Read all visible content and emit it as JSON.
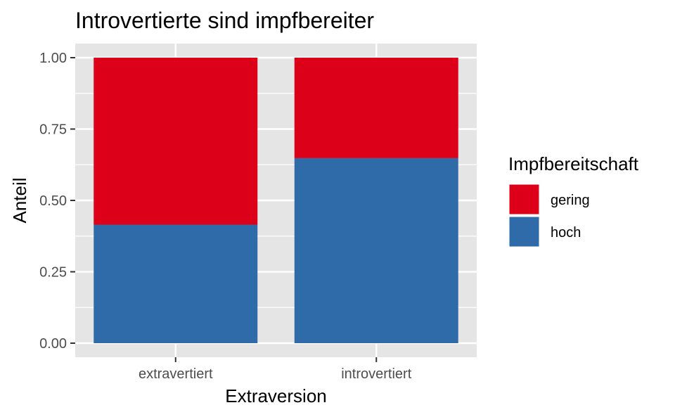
{
  "chart_data": {
    "type": "bar",
    "stacked": true,
    "title": "Introvertierte sind impfbereiter",
    "xlabel": "Extraversion",
    "ylabel": "Anteil",
    "categories": [
      "extravertiert",
      "introvertiert"
    ],
    "series": [
      {
        "name": "gering",
        "values": [
          0.585,
          0.352
        ],
        "color": "#DC0019"
      },
      {
        "name": "hoch",
        "values": [
          0.415,
          0.648
        ],
        "color": "#2E6BA8"
      }
    ],
    "ylim": [
      0,
      1
    ],
    "yticks": [
      0,
      0.25,
      0.5,
      0.75,
      1
    ],
    "ytick_labels": [
      "0.00",
      "0.25",
      "0.50",
      "0.75",
      "1.00"
    ],
    "grid": true,
    "legend": {
      "title": "Impfbereitschaft",
      "position": "right"
    },
    "panel_background": "#E5E5E5"
  }
}
